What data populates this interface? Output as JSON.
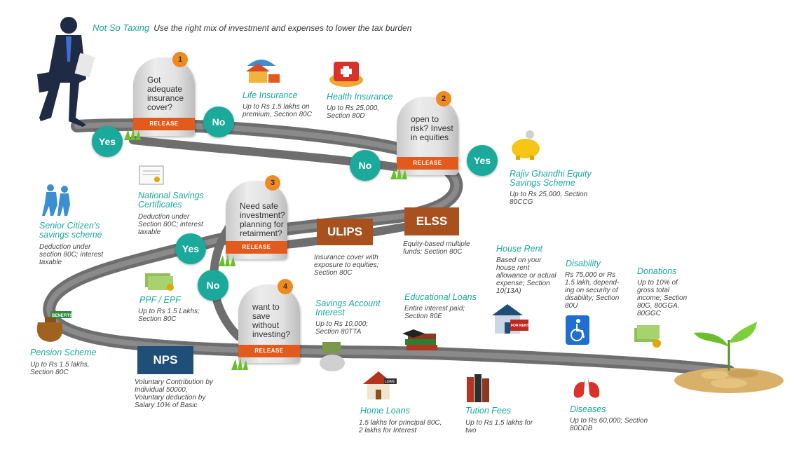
{
  "header": {
    "brand": "Not So Taxing",
    "tagline": "Use the right mix of investment and expenses to lower the tax burden"
  },
  "stones": [
    {
      "num": "1",
      "question": "Got adequate insurance cover?",
      "tag": "RELEASE"
    },
    {
      "num": "2",
      "question": "open to risk? Invest in equities",
      "tag": "RELEASE"
    },
    {
      "num": "3",
      "question": "Need safe investment? planning for retairment?",
      "tag": "RELEASE"
    },
    {
      "num": "4",
      "question": "want to save without investing?",
      "tag": "RELEASE"
    }
  ],
  "decisions": {
    "yes": "Yes",
    "no": "No"
  },
  "boxes": {
    "ulips": "ULIPS",
    "elss": "ELSS",
    "nps": "NPS"
  },
  "items": {
    "life": {
      "title": "Life Insurance",
      "desc": "Up to Rs 1.5 lakhs on premium, Section 80C"
    },
    "health": {
      "title": "Health Insurance",
      "desc": "Up to Rs 25,000, Section 80D"
    },
    "rgess": {
      "title": "Rajiv Ghandhi Equity Savings Scheme",
      "desc": "Up to Rs 25,000, Section 80CCG"
    },
    "nsc": {
      "title": "National Savings Certificates",
      "desc": "Deduction under Section 80C; interest taxable"
    },
    "senior": {
      "title": "Senior Citizen's savings scheme",
      "desc": "Deduction under section 80C; interest taxable"
    },
    "ulips": {
      "desc": "Insurance cover with exposure to equities; Section 80C"
    },
    "elss": {
      "desc": "Equity-based multiple funds; Section 80C"
    },
    "ppf": {
      "title": "PPF / EPF",
      "desc": "Up to Rs 1.5 Lakhs; Section 80C"
    },
    "savings": {
      "title": "Savings Account Interest",
      "desc": "Up to Rs 10,000; Section 80TTA"
    },
    "pension": {
      "title": "Pension Scheme",
      "desc": "Up to Rs 1.5 lakhs, Section 80C"
    },
    "nps": {
      "desc": "Voluntary Contribution by Individual 50000, Voluntary deduction by Salary 10% of Basic"
    },
    "eduloan": {
      "title": "Educational Loans",
      "desc": "Entire interest paid; Section 80E"
    },
    "rent": {
      "title": "House Rent",
      "desc": "Based on your house rent allowance or actual expense; Section 10(13A)"
    },
    "disability": {
      "title": "Disability",
      "desc": "Rs 75,000 or Rs 1.5 lakh, depend-ing on security of disability; Section 80U"
    },
    "donations": {
      "title": "Donations",
      "desc": "Up to 10% of gross total income; Section 80G, 80GGA, 80GGC"
    },
    "homeloan": {
      "title": "Home Loans",
      "desc": "1.5 lakhs for principal 80C, 2 lakhs for Interest"
    },
    "tution": {
      "title": "Tution Fees",
      "desc": "Up to Rs 1.5 lakhs for two"
    },
    "diseases": {
      "title": "Diseases",
      "desc": "Up to Rs 60,000; Section 80DDB"
    }
  },
  "icon_labels": {
    "benefits": "BENEFITS",
    "loan": "LOAN",
    "rent": "FOR RENT"
  },
  "colors": {
    "teal": "#1aa99b",
    "road": "#6e6e6e",
    "release": "#e25a1c",
    "number": "#ef8a1f",
    "box_brown": "#a8511f",
    "box_navy": "#1f4e79"
  }
}
